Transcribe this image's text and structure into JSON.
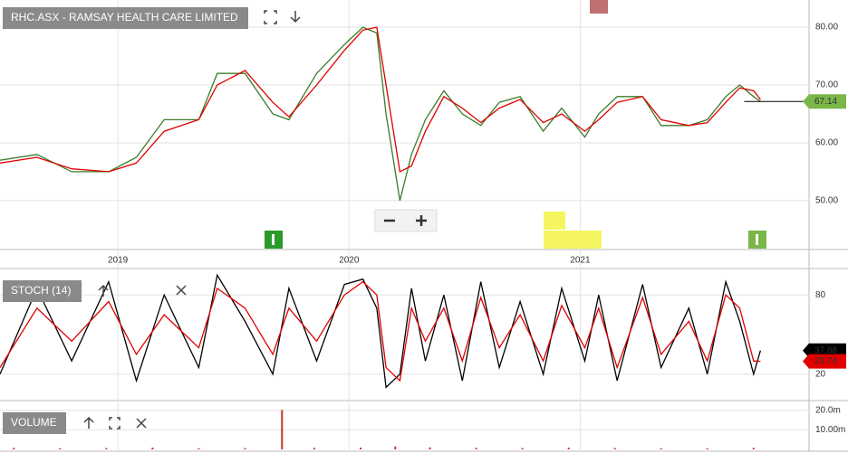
{
  "chart_data": [
    {
      "type": "line",
      "title": "RHC.ASX - RAMSAY HEALTH CARE LIMITED",
      "x": [
        2018.49,
        2018.65,
        2018.8,
        2018.96,
        2019.08,
        2019.2,
        2019.35,
        2019.43,
        2019.55,
        2019.67,
        2019.74,
        2019.86,
        2019.98,
        2020.06,
        2020.12,
        2020.16,
        2020.22,
        2020.27,
        2020.33,
        2020.41,
        2020.49,
        2020.57,
        2020.65,
        2020.74,
        2020.84,
        2020.92,
        2021.02,
        2021.08,
        2021.16,
        2021.27,
        2021.35,
        2021.47,
        2021.55,
        2021.63,
        2021.69,
        2021.75,
        2021.78
      ],
      "series": [
        {
          "color": "#3a7d2a",
          "last_value_tag": true,
          "values": [
            57,
            58,
            55,
            55,
            57.5,
            64,
            64,
            72,
            72,
            65,
            64,
            72,
            77,
            80,
            79,
            65,
            50,
            58,
            64,
            69,
            65,
            63,
            67,
            68,
            62,
            66,
            61,
            65,
            68,
            68,
            63,
            63,
            64,
            68,
            70,
            68,
            67.14
          ]
        },
        {
          "color": "#e00000",
          "values": [
            56.5,
            57.5,
            55.5,
            55,
            56.5,
            62,
            64,
            70,
            72.5,
            67,
            64.5,
            70,
            76,
            79.5,
            80,
            70,
            55,
            56,
            62,
            68,
            66,
            63.5,
            66,
            67.5,
            63.5,
            65,
            62,
            64,
            67,
            68,
            64,
            63,
            63.5,
            67,
            69.5,
            69,
            67.5
          ]
        }
      ],
      "xlim": [
        2018.49,
        2021.99
      ],
      "xticks": [
        2019,
        2020,
        2021
      ],
      "ylim": [
        41.7,
        84.7
      ],
      "yticks": [
        {
          "value": 80,
          "label": "80.00"
        },
        {
          "value": 70,
          "label": "70.00"
        },
        {
          "value": 60,
          "label": "60.00"
        },
        {
          "value": 50,
          "label": "50.00"
        }
      ],
      "grid": true
    },
    {
      "type": "line",
      "title": "STOCH (14)",
      "x": [
        2018.49,
        2018.65,
        2018.8,
        2018.96,
        2019.08,
        2019.2,
        2019.35,
        2019.43,
        2019.55,
        2019.67,
        2019.74,
        2019.86,
        2019.98,
        2020.06,
        2020.12,
        2020.16,
        2020.22,
        2020.27,
        2020.33,
        2020.41,
        2020.49,
        2020.57,
        2020.65,
        2020.74,
        2020.84,
        2020.92,
        2021.02,
        2021.08,
        2021.16,
        2021.27,
        2021.35,
        2021.47,
        2021.55,
        2021.63,
        2021.69,
        2021.75,
        2021.78
      ],
      "series": [
        {
          "color": "#000000",
          "last_value_tag": true,
          "values": [
            20,
            85,
            30,
            90,
            15,
            80,
            25,
            95,
            60,
            20,
            85,
            30,
            88,
            92,
            70,
            10,
            20,
            85,
            30,
            80,
            15,
            90,
            25,
            75,
            20,
            85,
            30,
            80,
            15,
            88,
            25,
            70,
            20,
            90,
            60,
            20,
            37.88
          ]
        },
        {
          "color": "#e00000",
          "last_value_tag": true,
          "values": [
            25,
            70,
            45,
            75,
            35,
            65,
            40,
            85,
            70,
            35,
            70,
            45,
            80,
            90,
            80,
            25,
            15,
            70,
            45,
            70,
            30,
            78,
            40,
            65,
            30,
            72,
            40,
            70,
            25,
            78,
            35,
            60,
            30,
            80,
            70,
            30,
            29.74
          ]
        }
      ],
      "xlim": [
        2018.49,
        2021.99
      ],
      "ylim": [
        0,
        100
      ],
      "yticks": [
        80,
        20
      ],
      "grid": true
    },
    {
      "type": "bar",
      "title": "VOLUME",
      "color": "#c0392b",
      "x": [
        2018.55,
        2018.75,
        2018.95,
        2019.15,
        2019.35,
        2019.55,
        2019.71,
        2019.85,
        2020.05,
        2020.2,
        2020.35,
        2020.55,
        2020.75,
        2020.95,
        2021.15,
        2021.35,
        2021.55,
        2021.75
      ],
      "values": [
        0.8,
        0.6,
        0.7,
        0.9,
        0.6,
        0.7,
        20.2,
        0.8,
        0.9,
        1.5,
        1.0,
        0.8,
        0.7,
        0.9,
        0.7,
        0.6,
        0.6,
        0.8
      ],
      "xlim": [
        2018.49,
        2021.99
      ],
      "ylim": [
        0,
        25
      ],
      "yticks": [
        {
          "value": 20,
          "label": "20.0m"
        },
        {
          "value": 10,
          "label": "10.00m"
        }
      ],
      "grid": true
    }
  ]
}
